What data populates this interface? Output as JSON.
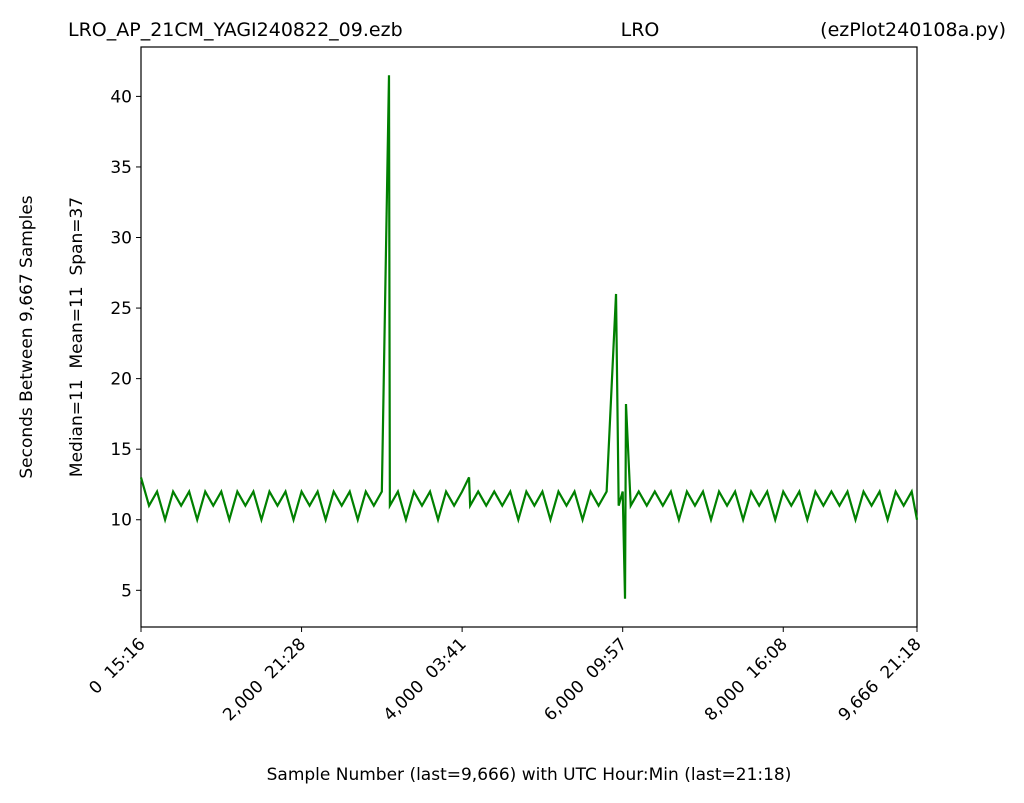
{
  "chart_data": {
    "type": "line",
    "title": "LRO_AP_21CM_YAGI240822_09.ezb",
    "title_center": "LRO",
    "title_right": "(ezPlot240108a.py)",
    "y_label": "Seconds Between 9,667 Samples",
    "y_label_2": "Median=11  Mean=11  Span=37",
    "x_label": "Sample Number (last=9,666) with UTC Hour:Min (last=21:18)",
    "xlim": [
      0,
      9666
    ],
    "ylim": [
      2.4,
      43.5
    ],
    "xticks": [
      {
        "value": 0,
        "label": "0  15:16"
      },
      {
        "value": 2000,
        "label": "2,000  21:28"
      },
      {
        "value": 4000,
        "label": "4,000  03:41"
      },
      {
        "value": 6000,
        "label": "6,000  09:57"
      },
      {
        "value": 8000,
        "label": "8,000  16:08"
      },
      {
        "value": 9666,
        "label": "9,666  21:18"
      }
    ],
    "yticks": [
      5,
      10,
      15,
      20,
      25,
      30,
      35,
      40
    ],
    "grid": false,
    "series": [
      {
        "color": "#008000",
        "x": [
          0,
          100,
          200,
          300,
          400,
          500,
          600,
          700,
          800,
          900,
          1000,
          1100,
          1200,
          1300,
          1400,
          1500,
          1600,
          1700,
          1800,
          1900,
          2000,
          2100,
          2200,
          2300,
          2400,
          2500,
          2600,
          2700,
          2800,
          2900,
          3000,
          3089,
          3100,
          3200,
          3300,
          3400,
          3500,
          3600,
          3700,
          3800,
          3900,
          4000,
          4086,
          4100,
          4200,
          4300,
          4400,
          4500,
          4600,
          4700,
          4800,
          4900,
          5000,
          5100,
          5200,
          5300,
          5400,
          5500,
          5600,
          5700,
          5800,
          5917,
          5950,
          6000,
          6029,
          6041,
          6100,
          6200,
          6300,
          6400,
          6500,
          6600,
          6700,
          6800,
          6900,
          7000,
          7100,
          7200,
          7300,
          7400,
          7500,
          7600,
          7700,
          7800,
          7900,
          8000,
          8100,
          8200,
          8300,
          8400,
          8500,
          8600,
          8700,
          8800,
          8900,
          9000,
          9100,
          9200,
          9300,
          9400,
          9500,
          9600,
          9666
        ],
        "values": [
          13,
          11,
          12,
          10,
          12,
          11,
          12,
          10,
          12,
          11,
          12,
          10,
          12,
          11,
          12,
          10,
          12,
          11,
          12,
          10,
          12,
          11,
          12,
          10,
          12,
          11,
          12,
          10,
          12,
          11,
          12,
          41.5,
          11,
          12,
          10,
          12,
          11,
          12,
          10,
          12,
          11,
          12,
          13,
          11,
          12,
          11,
          12,
          11,
          12,
          10,
          12,
          11,
          12,
          10,
          12,
          11,
          12,
          10,
          12,
          11,
          12,
          26,
          11,
          12,
          4.4,
          18.2,
          11,
          12,
          11,
          12,
          11,
          12,
          10,
          12,
          11,
          12,
          10,
          12,
          11,
          12,
          10,
          12,
          11,
          12,
          10,
          12,
          11,
          12,
          10,
          12,
          11,
          12,
          11,
          12,
          10,
          12,
          11,
          12,
          10,
          12,
          11,
          12,
          10
        ]
      }
    ]
  }
}
